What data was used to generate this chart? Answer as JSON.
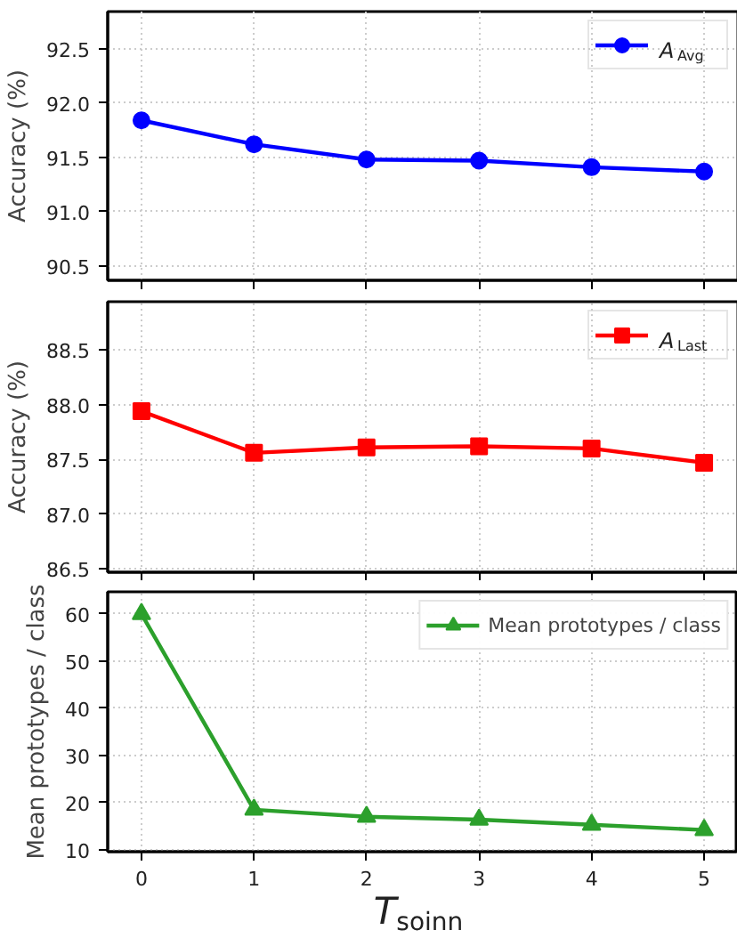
{
  "chart_data": [
    {
      "type": "line",
      "x": [
        0,
        1,
        2,
        3,
        4,
        5
      ],
      "xlim": [
        -0.3,
        5.3
      ],
      "xticks": [
        0,
        1,
        2,
        3,
        4,
        5
      ],
      "ylim": [
        90.37,
        92.84
      ],
      "yticks": [
        90.5,
        {
          "value": 91,
          "label": "91.0"
        },
        91.5,
        {
          "value": 92,
          "label": "92.0"
        },
        92.5
      ],
      "ylabel": "Accuracy (%)",
      "tick_labels": "y",
      "grid": true,
      "legend": "top right",
      "marker": "circle",
      "line_style": "solid",
      "series": [
        {
          "name": "A$_{Avg}$",
          "color": "#0000ff",
          "values": [
            91.84,
            91.62,
            91.48,
            91.47,
            91.41,
            91.37
          ]
        }
      ]
    },
    {
      "type": "line",
      "x": [
        0,
        1,
        2,
        3,
        4,
        5
      ],
      "xlim": [
        -0.3,
        5.3
      ],
      "xticks": [
        0,
        1,
        2,
        3,
        4,
        5
      ],
      "ylim": [
        86.47,
        88.94
      ],
      "yticks": [
        86.5,
        {
          "value": 87,
          "label": "87.0"
        },
        87.5,
        {
          "value": 88,
          "label": "88.0"
        },
        88.5
      ],
      "ylabel": "Accuracy (%)",
      "tick_labels": "y",
      "grid": true,
      "legend": "top right",
      "marker": "square",
      "line_style": "solid",
      "series": [
        {
          "name": "A$_{Last}$",
          "color": "#ff0000",
          "values": [
            87.94,
            87.56,
            87.61,
            87.62,
            87.6,
            87.47
          ]
        }
      ]
    },
    {
      "type": "line",
      "x": [
        0,
        1,
        2,
        3,
        4,
        5
      ],
      "xlim": [
        -0.3,
        5.3
      ],
      "xticks": [
        0,
        1,
        2,
        3,
        4,
        5
      ],
      "ylim": [
        9.6,
        64.7
      ],
      "yticks": [
        10,
        20,
        30,
        40,
        50,
        60
      ],
      "ylabel": "Mean prototypes / class",
      "xlabel": "T$_{soinn}$",
      "grid": true,
      "legend": "top right",
      "marker": "triangle",
      "line_style": "solid",
      "series": [
        {
          "name": "Mean prototypes / class",
          "color": "#2ca02c",
          "values": [
            60,
            18.5,
            17.0,
            16.4,
            15.3,
            14.2
          ]
        }
      ]
    }
  ]
}
